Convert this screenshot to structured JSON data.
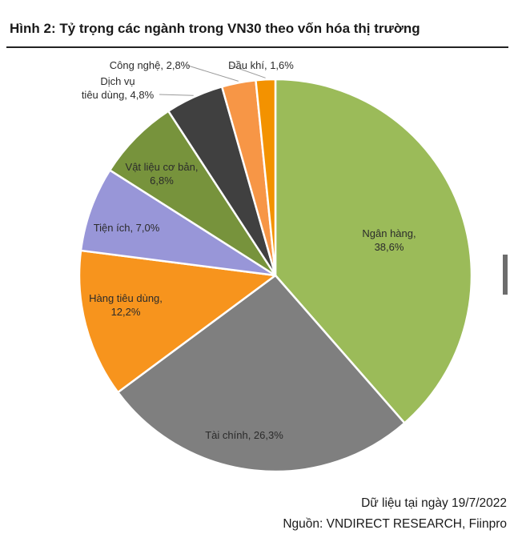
{
  "title": "Hình 2: Tỷ trọng các ngành trong VN30 theo vốn hóa thị trường",
  "footer": {
    "date_note": "Dữ liệu tại ngày 19/7/2022",
    "source": "Nguồn: VNDIRECT RESEARCH, Fiinpro"
  },
  "chart_data": {
    "type": "pie",
    "title": "Hình 2: Tỷ trọng các ngành trong VN30 theo vốn hóa thị trường",
    "legend": "none",
    "slices": [
      {
        "label": "Ngân hàng",
        "value_text": "38,6%",
        "value": 38.6,
        "color": "#9bbb59"
      },
      {
        "label": "Tài chính",
        "value_text": "26,3%",
        "value": 26.3,
        "color": "#7f7f7f"
      },
      {
        "label": "Hàng tiêu dùng",
        "value_text": "12,2%",
        "value": 12.2,
        "color": "#f7941d"
      },
      {
        "label": "Tiện ích",
        "value_text": "7,0%",
        "value": 7.0,
        "color": "#9896d8"
      },
      {
        "label": "Vật liệu cơ bản",
        "value_text": "6,8%",
        "value": 6.8,
        "color": "#77933c"
      },
      {
        "label": "Dịch vụ tiêu dùng",
        "value_text": "4,8%",
        "value": 4.8,
        "color": "#404040"
      },
      {
        "label": "Công nghệ",
        "value_text": "2,8%",
        "value": 2.8,
        "color": "#f79646"
      },
      {
        "label": "Dầu khí",
        "value_text": "1,6%",
        "value": 1.6,
        "color": "#f39200"
      }
    ]
  }
}
